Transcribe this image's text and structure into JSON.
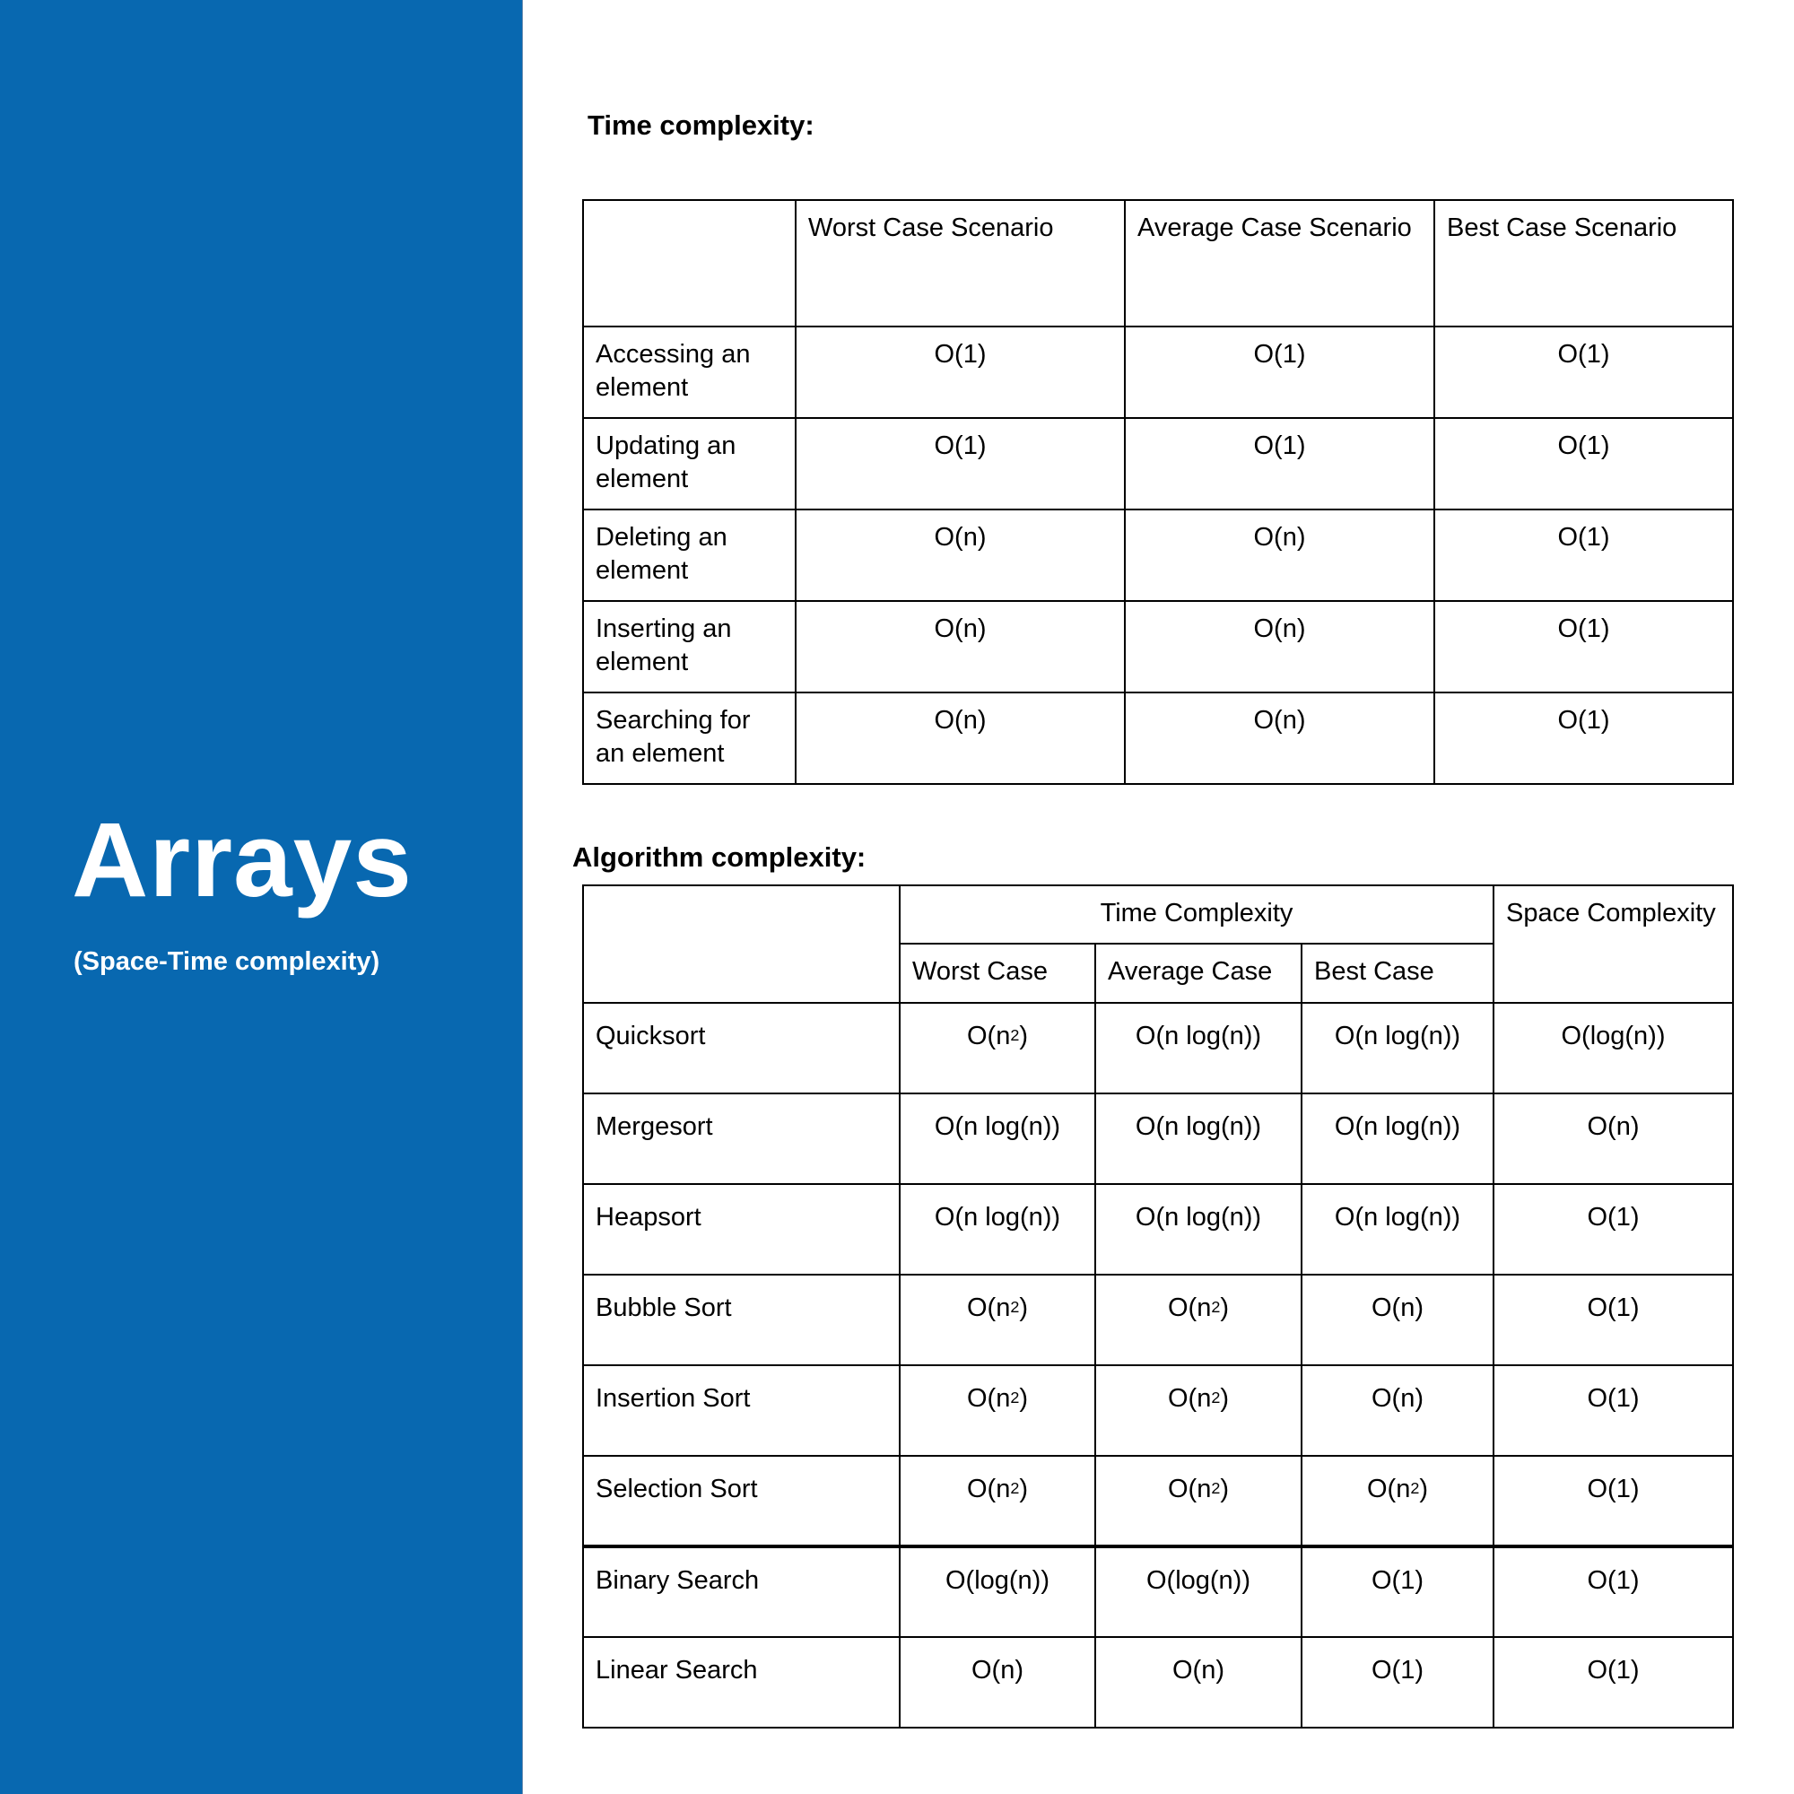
{
  "sidebar": {
    "title": "Arrays",
    "subtitle": "(Space-Time complexity)",
    "background_color": "#0868b0"
  },
  "time_complexity": {
    "heading": "Time complexity:",
    "columns": [
      "Worst Case Scenario",
      "Average Case Scenario",
      "Best Case Scenario"
    ],
    "rows": [
      {
        "operation": "Accessing an element",
        "worst": "O(1)",
        "average": "O(1)",
        "best": "O(1)"
      },
      {
        "operation": "Updating an element",
        "worst": "O(1)",
        "average": "O(1)",
        "best": "O(1)"
      },
      {
        "operation": "Deleting an element",
        "worst": "O(n)",
        "average": "O(n)",
        "best": "O(1)"
      },
      {
        "operation": "Inserting an element",
        "worst": "O(n)",
        "average": "O(n)",
        "best": "O(1)"
      },
      {
        "operation": "Searching for an element",
        "worst": "O(n)",
        "average": "O(n)",
        "best": "O(1)"
      }
    ]
  },
  "algorithm_complexity": {
    "heading": "Algorithm complexity:",
    "time_group_label": "Time Complexity",
    "space_label": "Space Complexity",
    "time_columns": [
      "Worst Case",
      "Average Case",
      "Best Case"
    ],
    "rows": [
      {
        "algorithm": "Quicksort",
        "worst": "O(n^2)",
        "average": "O(n log(n))",
        "best": "O(n log(n))",
        "space": "O(log(n))"
      },
      {
        "algorithm": "Mergesort",
        "worst": "O(n log(n))",
        "average": "O(n log(n))",
        "best": "O(n log(n))",
        "space": "O(n)"
      },
      {
        "algorithm": "Heapsort",
        "worst": "O(n log(n))",
        "average": "O(n log(n))",
        "best": "O(n log(n))",
        "space": "O(1)"
      },
      {
        "algorithm": "Bubble Sort",
        "worst": "O(n^2)",
        "average": "O(n^2)",
        "best": "O(n)",
        "space": "O(1)"
      },
      {
        "algorithm": "Insertion Sort",
        "worst": "O(n^2)",
        "average": "O(n^2)",
        "best": "O(n)",
        "space": "O(1)"
      },
      {
        "algorithm": "Selection Sort",
        "worst": "O(n^2)",
        "average": "O(n^2)",
        "best": "O(n^2)",
        "space": "O(1)"
      },
      {
        "algorithm": "Binary Search",
        "worst": "O(log(n))",
        "average": "O(log(n))",
        "best": "O(1)",
        "space": "O(1)"
      },
      {
        "algorithm": "Linear Search",
        "worst": "O(n)",
        "average": "O(n)",
        "best": "O(1)",
        "space": "O(1)"
      }
    ]
  }
}
